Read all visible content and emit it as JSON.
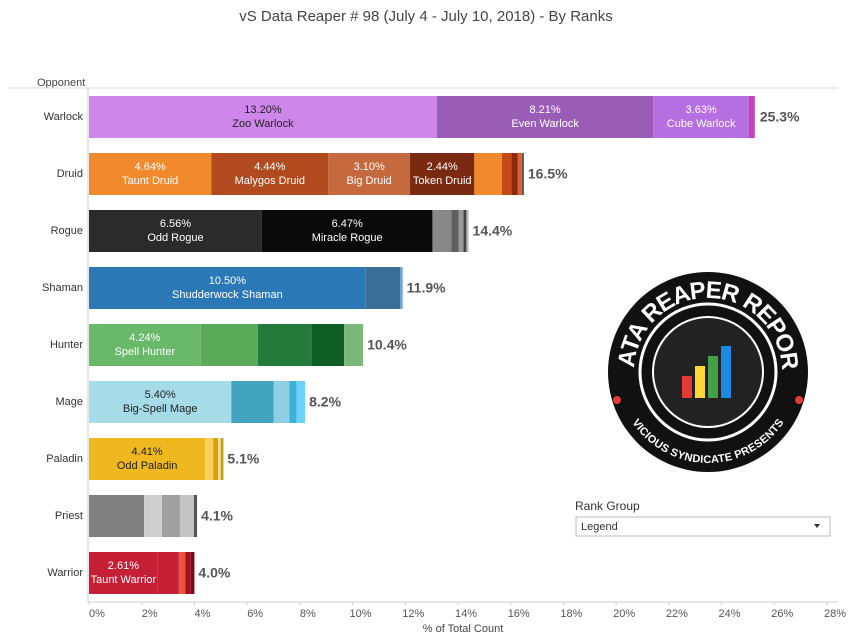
{
  "chart_data": {
    "type": "stacked-bar",
    "title": "vS Data Reaper #  98 (July 4 - July 10, 2018) - By Ranks",
    "category_axis_label": "Opponent",
    "x_axis_label": "% of Total Count",
    "xlim": [
      0,
      28
    ],
    "xticks": [
      {
        "value": 0,
        "label": "0%"
      },
      {
        "value": 2,
        "label": "2%"
      },
      {
        "value": 4,
        "label": "4%"
      },
      {
        "value": 6,
        "label": "6%"
      },
      {
        "value": 8,
        "label": "8%"
      },
      {
        "value": 10,
        "label": "10%"
      },
      {
        "value": 12,
        "label": "12%"
      },
      {
        "value": 14,
        "label": "14%"
      },
      {
        "value": 16,
        "label": "16%"
      },
      {
        "value": 18,
        "label": "18%"
      },
      {
        "value": 20,
        "label": "20%"
      },
      {
        "value": 22,
        "label": "22%"
      },
      {
        "value": 24,
        "label": "24%"
      },
      {
        "value": 26,
        "label": "26%"
      },
      {
        "value": 28,
        "label": "28%"
      }
    ],
    "bars": [
      {
        "category": "Warlock",
        "total": 25.3,
        "total_label": "25.3%",
        "segments": [
          {
            "name": "Zoo Warlock",
            "value": 13.2,
            "value_label": "13.20%",
            "color": "#cf86eb"
          },
          {
            "name": "Even Warlock",
            "value": 8.21,
            "value_label": "8.21%",
            "color": "#9a5db6"
          },
          {
            "name": "Cube Warlock",
            "value": 3.63,
            "value_label": "3.63%",
            "color": "#b56fe0"
          },
          {
            "value": 0.22,
            "color": "#c640b8"
          }
        ]
      },
      {
        "category": "Druid",
        "total": 16.5,
        "total_label": "16.5%",
        "segments": [
          {
            "name": "Taunt Druid",
            "value": 4.64,
            "value_label": "4.64%",
            "color": "#f08a2c"
          },
          {
            "name": "Malygos Druid",
            "value": 4.44,
            "value_label": "4.44%",
            "color": "#b24a1f"
          },
          {
            "name": "Big Druid",
            "value": 3.1,
            "value_label": "3.10%",
            "color": "#c56a3e"
          },
          {
            "name": "Token Druid",
            "value": 2.44,
            "value_label": "2.44%",
            "color": "#7a2a10"
          },
          {
            "value": 1.05,
            "color": "#f08a2c"
          },
          {
            "value": 0.35,
            "color": "#c44a1a"
          },
          {
            "value": 0.25,
            "color": "#8b2a10"
          },
          {
            "value": 0.15,
            "color": "#e06030"
          },
          {
            "value": 0.08,
            "color": "#555555"
          }
        ]
      },
      {
        "category": "Rogue",
        "total": 14.4,
        "total_label": "14.4%",
        "segments": [
          {
            "name": "Odd Rogue",
            "value": 6.56,
            "value_label": "6.56%",
            "color": "#2b2b2b"
          },
          {
            "name": "Miracle Rogue",
            "value": 6.47,
            "value_label": "6.47%",
            "color": "#0a0a0a"
          },
          {
            "value": 0.72,
            "color": "#888888"
          },
          {
            "value": 0.27,
            "color": "#5f5f5f"
          },
          {
            "value": 0.19,
            "color": "#999999"
          },
          {
            "value": 0.11,
            "color": "#444444"
          },
          {
            "value": 0.08,
            "color": "#bbbbbb"
          }
        ]
      },
      {
        "category": "Shaman",
        "total": 11.9,
        "total_label": "11.9%",
        "segments": [
          {
            "name": "Shudderwock Shaman",
            "value": 10.5,
            "value_label": "10.50%",
            "color": "#2a78b6"
          },
          {
            "value": 1.3,
            "color": "#3a6e96"
          },
          {
            "value": 0.1,
            "color": "#6aa6d6"
          }
        ]
      },
      {
        "category": "Hunter",
        "total": 10.4,
        "total_label": "10.4%",
        "segments": [
          {
            "name": "Spell Hunter",
            "value": 4.24,
            "value_label": "4.24%",
            "color": "#6ab86a"
          },
          {
            "value": 2.17,
            "color": "#5aaa5a"
          },
          {
            "value": 2.05,
            "color": "#247a3a"
          },
          {
            "value": 1.22,
            "color": "#0e5e26"
          },
          {
            "value": 0.72,
            "color": "#7ab87a"
          }
        ]
      },
      {
        "category": "Mage",
        "total": 8.2,
        "total_label": "8.2%",
        "segments": [
          {
            "name": "Big-Spell Mage",
            "value": 5.4,
            "value_label": "5.40%",
            "color": "#a6dce8"
          },
          {
            "value": 1.6,
            "color": "#43a4bf"
          },
          {
            "value": 0.6,
            "color": "#8dcfe3"
          },
          {
            "value": 0.27,
            "color": "#3fb0d9"
          },
          {
            "value": 0.33,
            "color": "#6bd3f5"
          }
        ]
      },
      {
        "category": "Paladin",
        "total": 5.1,
        "total_label": "5.1%",
        "segments": [
          {
            "name": "Odd Paladin",
            "value": 4.41,
            "value_label": "4.41%",
            "color": "#efb81f"
          },
          {
            "value": 0.3,
            "color": "#f7d060"
          },
          {
            "value": 0.19,
            "color": "#e09d10"
          },
          {
            "value": 0.1,
            "color": "#f5e08a"
          },
          {
            "value": 0.1,
            "color": "#c0a020"
          }
        ]
      },
      {
        "category": "Priest",
        "total": 4.1,
        "total_label": "4.1%",
        "segments": [
          {
            "value": 2.09,
            "color": "#808080"
          },
          {
            "value": 0.68,
            "color": "#cfcfcf"
          },
          {
            "value": 0.68,
            "color": "#a0a0a0"
          },
          {
            "value": 0.53,
            "color": "#c4c4c4"
          },
          {
            "value": 0.12,
            "color": "#555555"
          }
        ]
      },
      {
        "category": "Warrior",
        "total": 4.0,
        "total_label": "4.0%",
        "segments": [
          {
            "name": "Taunt Warrior",
            "value": 2.61,
            "value_label": "2.61%",
            "color": "#c51f35"
          },
          {
            "value": 0.8,
            "color": "#c51f35"
          },
          {
            "value": 0.25,
            "color": "#e8533a"
          },
          {
            "value": 0.2,
            "color": "#a01020"
          },
          {
            "value": 0.14,
            "color": "#7a0a15"
          }
        ]
      }
    ],
    "legend_title": "Rank Group",
    "legend_select": "Legend",
    "logo": {
      "title": "DATA REAPER REPORT",
      "subtitle": "VICIOUS SYNDICATE PRESENTS"
    }
  }
}
